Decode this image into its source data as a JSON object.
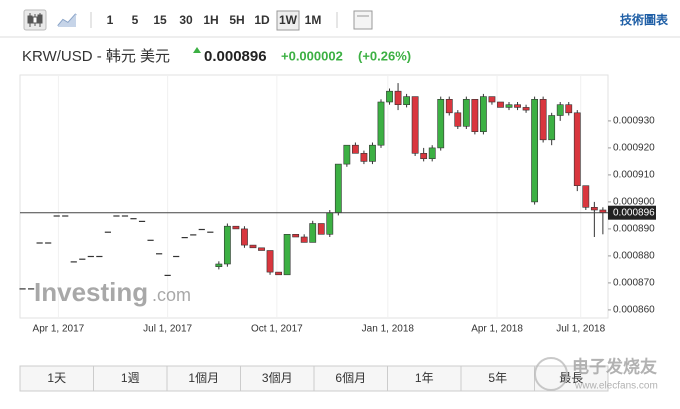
{
  "toolbar": {
    "intervals": [
      "1",
      "5",
      "15",
      "30",
      "1H",
      "5H",
      "1D",
      "1W",
      "1M"
    ],
    "active_interval": "1W",
    "link": "技術圖表"
  },
  "header": {
    "symbol": "KRW/USD - 韩元 美元",
    "price": "0.000896",
    "change": "+0.000002",
    "change_pct": "(+0.26%)"
  },
  "watermark": {
    "logo": "Investing",
    "logo_suffix": ".com",
    "site_name": "电子发烧友",
    "site_url": "www.elecfans.com"
  },
  "ranges": [
    "1天",
    "1週",
    "1個月",
    "3個月",
    "6個月",
    "1年",
    "5年",
    "最長"
  ],
  "chart_data": {
    "type": "candlestick",
    "up_color": "#3cb043",
    "down_color": "#d9363e",
    "grid": true,
    "last_price": 0.000896,
    "xlim": [
      -0.3,
      68.6
    ],
    "xticks": [
      {
        "value": 4.2,
        "label": "Apr 1, 2017"
      },
      {
        "value": 17.0,
        "label": "Jul 1, 2017"
      },
      {
        "value": 29.8,
        "label": "Oct 1, 2017"
      },
      {
        "value": 42.8,
        "label": "Jan 1, 2018"
      },
      {
        "value": 55.6,
        "label": "Apr 1, 2018"
      },
      {
        "value": 65.4,
        "label": "Jul 1, 2018"
      }
    ],
    "ylim": [
      0.000857,
      0.000947
    ],
    "yticks": [
      {
        "value": 0.00086,
        "label": "0.000860"
      },
      {
        "value": 0.00087,
        "label": "0.000870"
      },
      {
        "value": 0.00088,
        "label": "0.000880"
      },
      {
        "value": 0.00089,
        "label": "0.000890"
      },
      {
        "value": 0.0009,
        "label": "0.000900"
      },
      {
        "value": 0.00091,
        "label": "0.000910"
      },
      {
        "value": 0.00092,
        "label": "0.000920"
      },
      {
        "value": 0.00093,
        "label": "0.000930"
      }
    ],
    "open": [
      0.000868,
      0.000868,
      0.000885,
      0.000885,
      0.000895,
      0.000895,
      0.000878,
      0.000879,
      0.00088,
      0.00088,
      0.000889,
      0.000895,
      0.000895,
      0.000894,
      0.000893,
      0.000886,
      0.000881,
      0.000873,
      0.00088,
      0.000887,
      0.000888,
      0.00089,
      0.000889,
      0.000876,
      0.000877,
      0.000891,
      0.00089,
      0.000884,
      0.000883,
      0.000882,
      0.000874,
      0.000873,
      0.000888,
      0.000887,
      0.000885,
      0.000892,
      0.000888,
      0.000896,
      0.000914,
      0.000921,
      0.000918,
      0.000915,
      0.000921,
      0.000937,
      0.000941,
      0.000936,
      0.000939,
      0.000918,
      0.000916,
      0.00092,
      0.000938,
      0.000933,
      0.000928,
      0.000938,
      0.000926,
      0.000939,
      0.000937,
      0.000935,
      0.000936,
      0.000935,
      0.0009,
      0.000938,
      0.000923,
      0.000932,
      0.000936,
      0.000933,
      0.000906,
      0.000898,
      0.000897
    ],
    "high": [
      0.000868,
      0.000868,
      0.000885,
      0.000885,
      0.000895,
      0.000895,
      0.000878,
      0.000879,
      0.00088,
      0.00088,
      0.000889,
      0.000895,
      0.000895,
      0.000894,
      0.000893,
      0.000886,
      0.000881,
      0.000873,
      0.00088,
      0.000887,
      0.000888,
      0.00089,
      0.000889,
      0.000878,
      0.000892,
      0.000891,
      0.000891,
      0.000884,
      0.000883,
      0.000882,
      0.000874,
      0.000888,
      0.000888,
      0.000888,
      0.000893,
      0.000892,
      0.000897,
      0.000914,
      0.000921,
      0.000922,
      0.000919,
      0.000922,
      0.000938,
      0.000942,
      0.000944,
      0.00094,
      0.000939,
      0.00092,
      0.000921,
      0.000939,
      0.000939,
      0.000934,
      0.000939,
      0.000938,
      0.00094,
      0.000939,
      0.000937,
      0.000937,
      0.000937,
      0.000936,
      0.000939,
      0.000939,
      0.000933,
      0.000937,
      0.000937,
      0.000934,
      0.000906,
      0.0009,
      0.000898
    ],
    "low": [
      0.000868,
      0.000868,
      0.000885,
      0.000885,
      0.000895,
      0.000895,
      0.000878,
      0.000879,
      0.00088,
      0.00088,
      0.000889,
      0.000895,
      0.000895,
      0.000894,
      0.000893,
      0.000886,
      0.000881,
      0.000873,
      0.00088,
      0.000887,
      0.000888,
      0.00089,
      0.000889,
      0.000875,
      0.000876,
      0.00089,
      0.000883,
      0.000883,
      0.000882,
      0.000873,
      0.000873,
      0.000873,
      0.000887,
      0.000885,
      0.000885,
      0.000888,
      0.000887,
      0.000895,
      0.000913,
      0.000918,
      0.000914,
      0.000914,
      0.00092,
      0.000936,
      0.000934,
      0.000935,
      0.000917,
      0.000915,
      0.000915,
      0.000919,
      0.000932,
      0.000927,
      0.000927,
      0.000925,
      0.000925,
      0.000936,
      0.000935,
      0.000934,
      0.000934,
      0.000933,
      0.000899,
      0.000922,
      0.000921,
      0.00093,
      0.000932,
      0.000904,
      0.000897,
      0.000887,
      0.000888
    ],
    "close": [
      0.000868,
      0.000868,
      0.000885,
      0.000885,
      0.000895,
      0.000895,
      0.000878,
      0.000879,
      0.00088,
      0.00088,
      0.000889,
      0.000895,
      0.000895,
      0.000894,
      0.000893,
      0.000886,
      0.000881,
      0.000873,
      0.00088,
      0.000887,
      0.000888,
      0.00089,
      0.000889,
      0.000877,
      0.000891,
      0.00089,
      0.000884,
      0.000883,
      0.000882,
      0.000874,
      0.000873,
      0.000888,
      0.000887,
      0.000885,
      0.000892,
      0.000888,
      0.000896,
      0.000914,
      0.000921,
      0.000918,
      0.000915,
      0.000921,
      0.000937,
      0.000941,
      0.000936,
      0.000939,
      0.000918,
      0.000916,
      0.00092,
      0.000938,
      0.000933,
      0.000928,
      0.000938,
      0.000926,
      0.000939,
      0.000937,
      0.000935,
      0.000936,
      0.000935,
      0.000934,
      0.000938,
      0.000923,
      0.000932,
      0.000936,
      0.000933,
      0.000906,
      0.000898,
      0.000897,
      0.000896
    ]
  }
}
